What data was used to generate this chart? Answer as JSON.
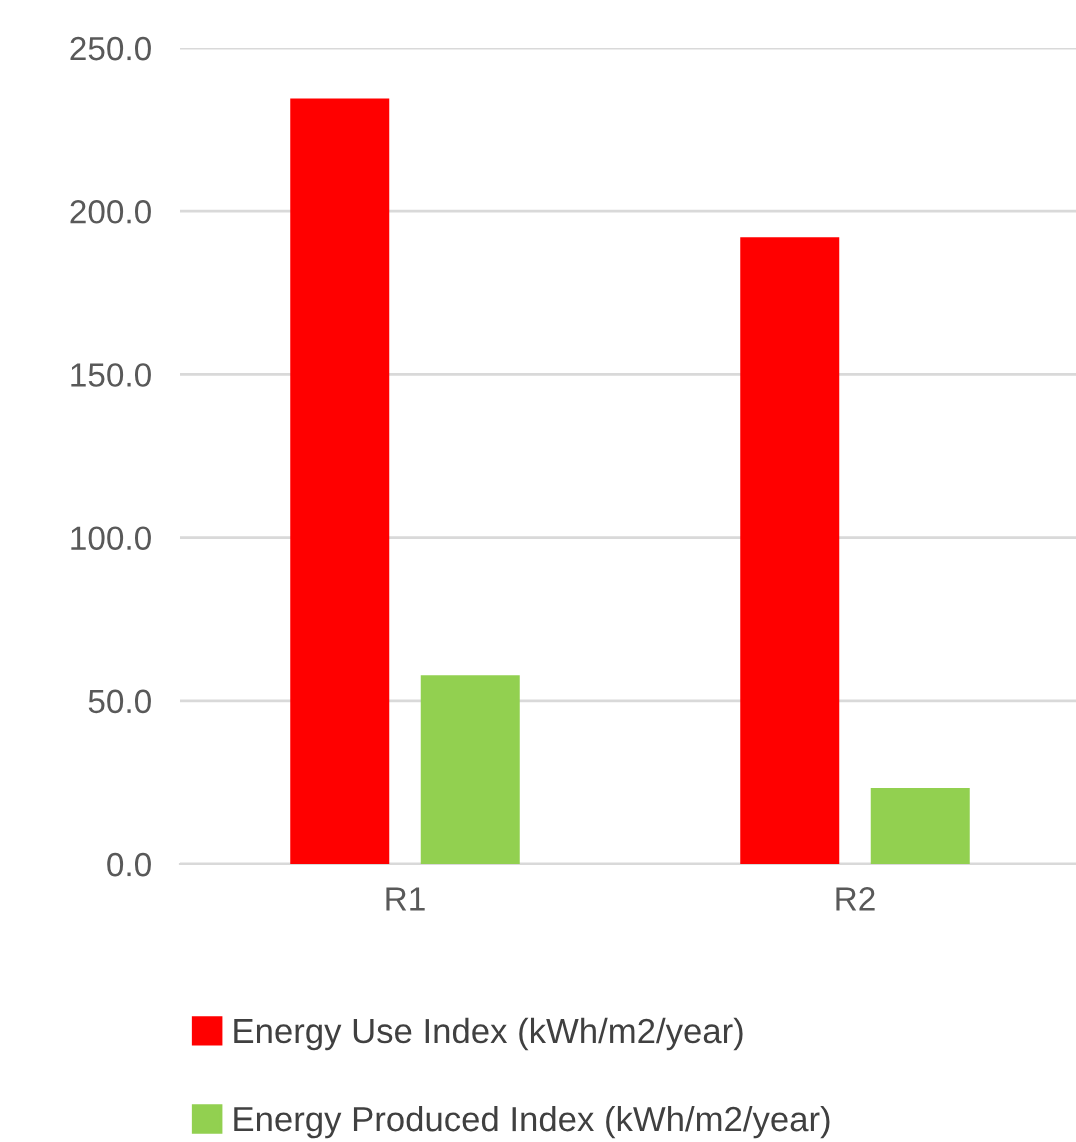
{
  "chart_data": {
    "type": "bar",
    "categories": [
      "R1",
      "R2"
    ],
    "series": [
      {
        "name": "Energy Use Index (kWh/m2/year)",
        "color": "#ff0000",
        "values": [
          234.5,
          192.0
        ]
      },
      {
        "name": "Energy Produced Index (kWh/m2/year)",
        "color": "#92d050",
        "values": [
          57.8,
          23.3
        ]
      }
    ],
    "ylim": [
      0,
      250
    ],
    "yticks": [
      {
        "value": 0,
        "label": "0.0"
      },
      {
        "value": 50,
        "label": "50.0"
      },
      {
        "value": 100,
        "label": "100.0"
      },
      {
        "value": 150,
        "label": "150.0"
      },
      {
        "value": 200,
        "label": "200.0"
      },
      {
        "value": 250,
        "label": "250.0"
      }
    ],
    "grid": "y",
    "legend": "bottom"
  }
}
